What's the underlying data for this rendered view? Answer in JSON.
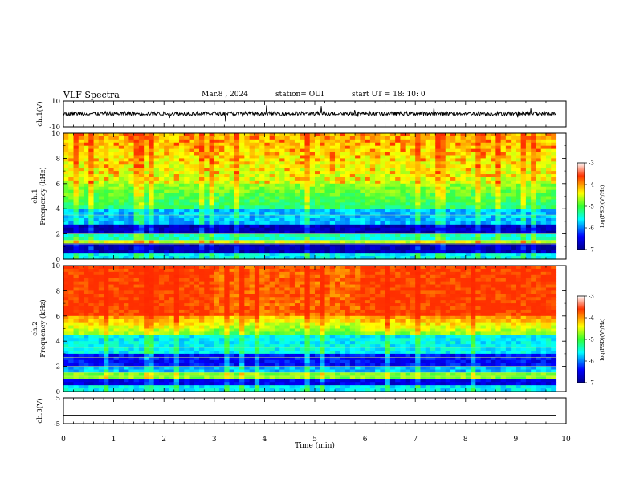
{
  "header": {
    "title": "VLF Spectra",
    "date": "Mar.8 , 2024",
    "station": "station= OUI",
    "start": "start UT = 18: 10: 0"
  },
  "chart_data": [
    {
      "type": "line",
      "name": "ch1-waveform",
      "ylabel": "ch.1(V)",
      "ylim": [
        -10,
        10
      ],
      "yticks": [
        "10",
        "-10"
      ],
      "xlim": [
        0,
        10
      ],
      "note": "noisy waveform centered near 0 with amplitude about ±2 V, occasional spikes"
    },
    {
      "type": "heatmap",
      "name": "ch1-spectrogram",
      "ylabel": "ch.1\nFrequency (kHz)",
      "ylim": [
        0,
        10
      ],
      "yticks": [
        "0",
        "2",
        "4",
        "6",
        "8",
        "10"
      ],
      "xlim": [
        0,
        9.8
      ],
      "colorbar": {
        "label": "log(PSD)(V²/Hz)",
        "ticks": [
          "-3",
          "-4",
          "-5",
          "-6",
          "-7"
        ],
        "range": [
          -7,
          -3
        ]
      }
    },
    {
      "type": "heatmap",
      "name": "ch2-spectrogram",
      "ylabel": "ch.2\nFrequency (kHz)",
      "ylim": [
        0,
        10
      ],
      "yticks": [
        "0",
        "2",
        "4",
        "6",
        "8",
        "10"
      ],
      "xlim": [
        0,
        9.8
      ],
      "colorbar": {
        "label": "log(PSD)(V²/Hz)",
        "ticks": [
          "-3",
          "-4",
          "-5",
          "-6",
          "-7"
        ],
        "range": [
          -7,
          -3
        ]
      }
    },
    {
      "type": "line",
      "name": "ch3-waveform",
      "ylabel": "ch.3(V)",
      "ylim": [
        -5,
        5
      ],
      "yticks": [
        "5",
        "-5"
      ],
      "x": [
        0,
        9.8
      ],
      "y": [
        -1.8,
        -1.8
      ]
    }
  ],
  "xaxis": {
    "label": "Time (min)",
    "ticks": [
      "0",
      "1",
      "2",
      "3",
      "4",
      "5",
      "6",
      "7",
      "8",
      "9",
      "10"
    ],
    "range": [
      0,
      10
    ]
  }
}
